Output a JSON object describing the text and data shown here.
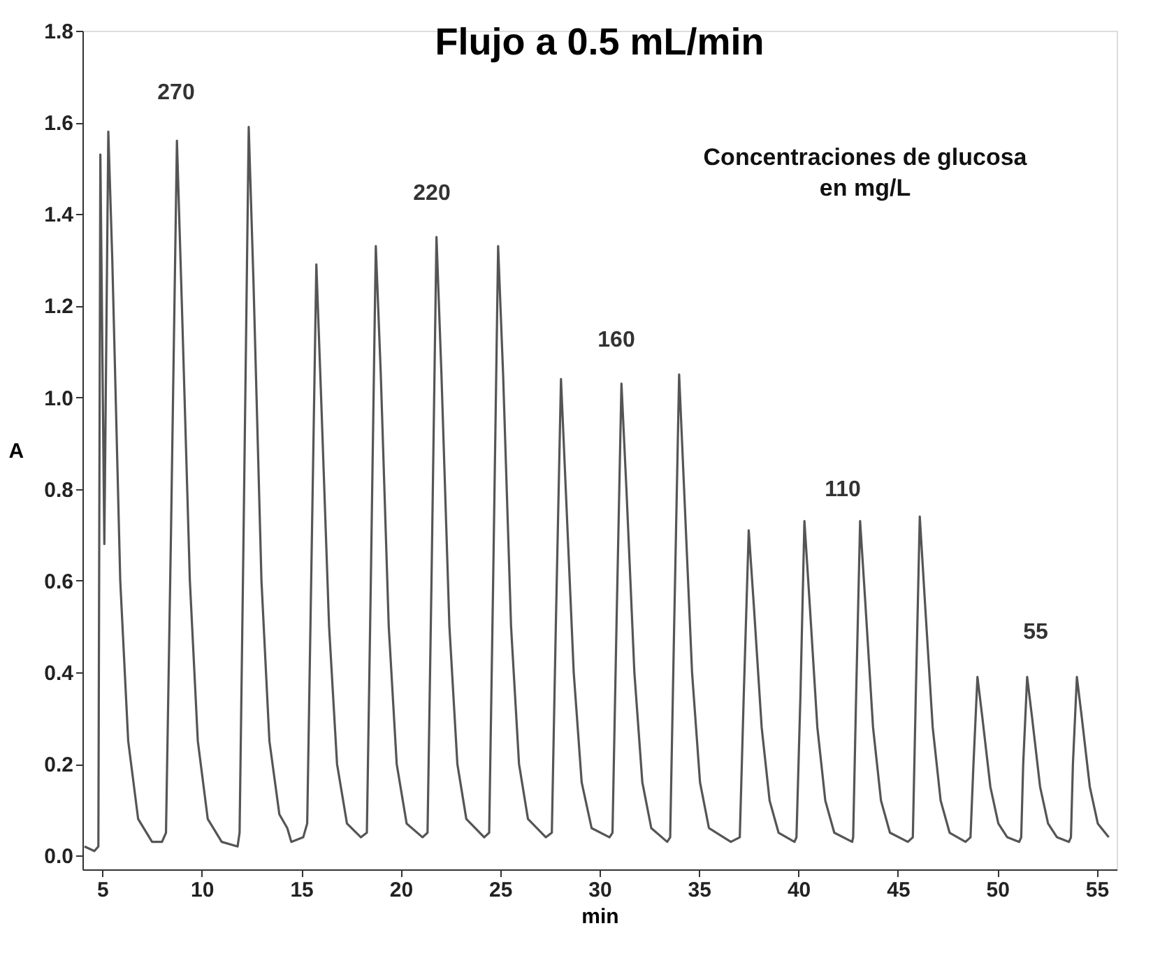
{
  "chart_data": {
    "type": "line",
    "title": "Flujo a 0.5 mL/min",
    "xlabel": "min",
    "ylabel": "A",
    "xlim": [
      4,
      56
    ],
    "xticks": [
      5,
      10,
      15,
      20,
      25,
      30,
      35,
      40,
      45,
      50,
      55
    ],
    "ylim": [
      -0.03,
      1.8
    ],
    "yticks": [
      {
        "value": 0,
        "label": "0.0"
      },
      0.2,
      0.4,
      0.6,
      0.8,
      {
        "value": 1,
        "label": "1.0"
      },
      1.2,
      1.4,
      1.6,
      1.8
    ],
    "grid": false,
    "marker": "none",
    "line_style": "solid",
    "x": [
      4.1,
      4.6,
      4.8,
      4.9,
      5.1,
      5.3,
      5.5,
      5.9,
      6.3,
      6.8,
      7.5,
      8.0,
      8.2,
      8.45,
      8.75,
      9.0,
      9.4,
      9.8,
      10.3,
      11,
      11.8,
      11.9,
      12.1,
      12.36,
      12.6,
      13,
      13.4,
      13.9,
      14.3,
      14.5,
      15.1,
      15.3,
      15.5,
      15.76,
      16.0,
      16.4,
      16.8,
      17.3,
      18.0,
      18.3,
      18.5,
      18.75,
      19.0,
      19.4,
      19.8,
      20.3,
      21.1,
      21.35,
      21.55,
      21.8,
      22.05,
      22.45,
      22.85,
      23.3,
      24.2,
      24.45,
      24.65,
      24.9,
      25.15,
      25.55,
      25.95,
      26.4,
      27.3,
      27.6,
      27.8,
      28.06,
      28.3,
      28.7,
      29.1,
      29.6,
      30.5,
      30.65,
      30.85,
      31.1,
      31.35,
      31.75,
      32.15,
      32.6,
      33.4,
      33.55,
      33.75,
      34.0,
      34.25,
      34.65,
      35.05,
      35.5,
      36.6,
      37.05,
      37.25,
      37.5,
      37.75,
      38.15,
      38.55,
      39,
      39.8,
      39.9,
      40.1,
      40.3,
      40.55,
      40.95,
      41.35,
      41.8,
      42.7,
      42.75,
      42.9,
      43.1,
      43.35,
      43.75,
      44.15,
      44.6,
      45.5,
      45.75,
      45.9,
      46.1,
      46.35,
      46.75,
      47.15,
      47.6,
      48.4,
      48.65,
      48.8,
      49.0,
      49.25,
      49.65,
      50.05,
      50.5,
      51.1,
      51.2,
      51.3,
      51.5,
      51.75,
      52.15,
      52.55,
      53.0,
      53.6,
      53.7,
      53.8,
      54.0,
      54.25,
      54.65,
      55.05,
      55.6
    ],
    "series": [
      {
        "color": "#555555",
        "values": [
          0.02,
          0.01,
          0.02,
          1.53,
          0.68,
          1.58,
          1.3,
          0.6,
          0.25,
          0.08,
          0.03,
          0.03,
          0.05,
          0.7,
          1.56,
          1.2,
          0.6,
          0.25,
          0.08,
          0.03,
          0.02,
          0.05,
          0.7,
          1.59,
          1.25,
          0.6,
          0.25,
          0.09,
          0.06,
          0.03,
          0.04,
          0.07,
          0.6,
          1.29,
          1.0,
          0.5,
          0.2,
          0.07,
          0.04,
          0.05,
          0.6,
          1.33,
          1.05,
          0.5,
          0.2,
          0.07,
          0.04,
          0.05,
          0.6,
          1.35,
          1.05,
          0.5,
          0.2,
          0.08,
          0.04,
          0.05,
          0.6,
          1.33,
          1.05,
          0.5,
          0.2,
          0.08,
          0.04,
          0.05,
          0.5,
          1.04,
          0.8,
          0.4,
          0.16,
          0.06,
          0.04,
          0.05,
          0.5,
          1.03,
          0.8,
          0.4,
          0.16,
          0.06,
          0.03,
          0.04,
          0.5,
          1.05,
          0.8,
          0.4,
          0.16,
          0.06,
          0.03,
          0.04,
          0.35,
          0.71,
          0.55,
          0.28,
          0.12,
          0.05,
          0.03,
          0.04,
          0.35,
          0.73,
          0.56,
          0.28,
          0.12,
          0.05,
          0.03,
          0.04,
          0.35,
          0.73,
          0.56,
          0.28,
          0.12,
          0.05,
          0.03,
          0.04,
          0.35,
          0.74,
          0.56,
          0.28,
          0.12,
          0.05,
          0.03,
          0.04,
          0.2,
          0.39,
          0.3,
          0.15,
          0.07,
          0.04,
          0.03,
          0.04,
          0.2,
          0.39,
          0.3,
          0.15,
          0.07,
          0.04,
          0.03,
          0.04,
          0.2,
          0.39,
          0.3,
          0.15,
          0.07,
          0.04
        ]
      }
    ],
    "annotations": [
      "270",
      "220",
      "160",
      "110",
      "55",
      "Concentraciones de glucosa\nen mg/L"
    ]
  }
}
